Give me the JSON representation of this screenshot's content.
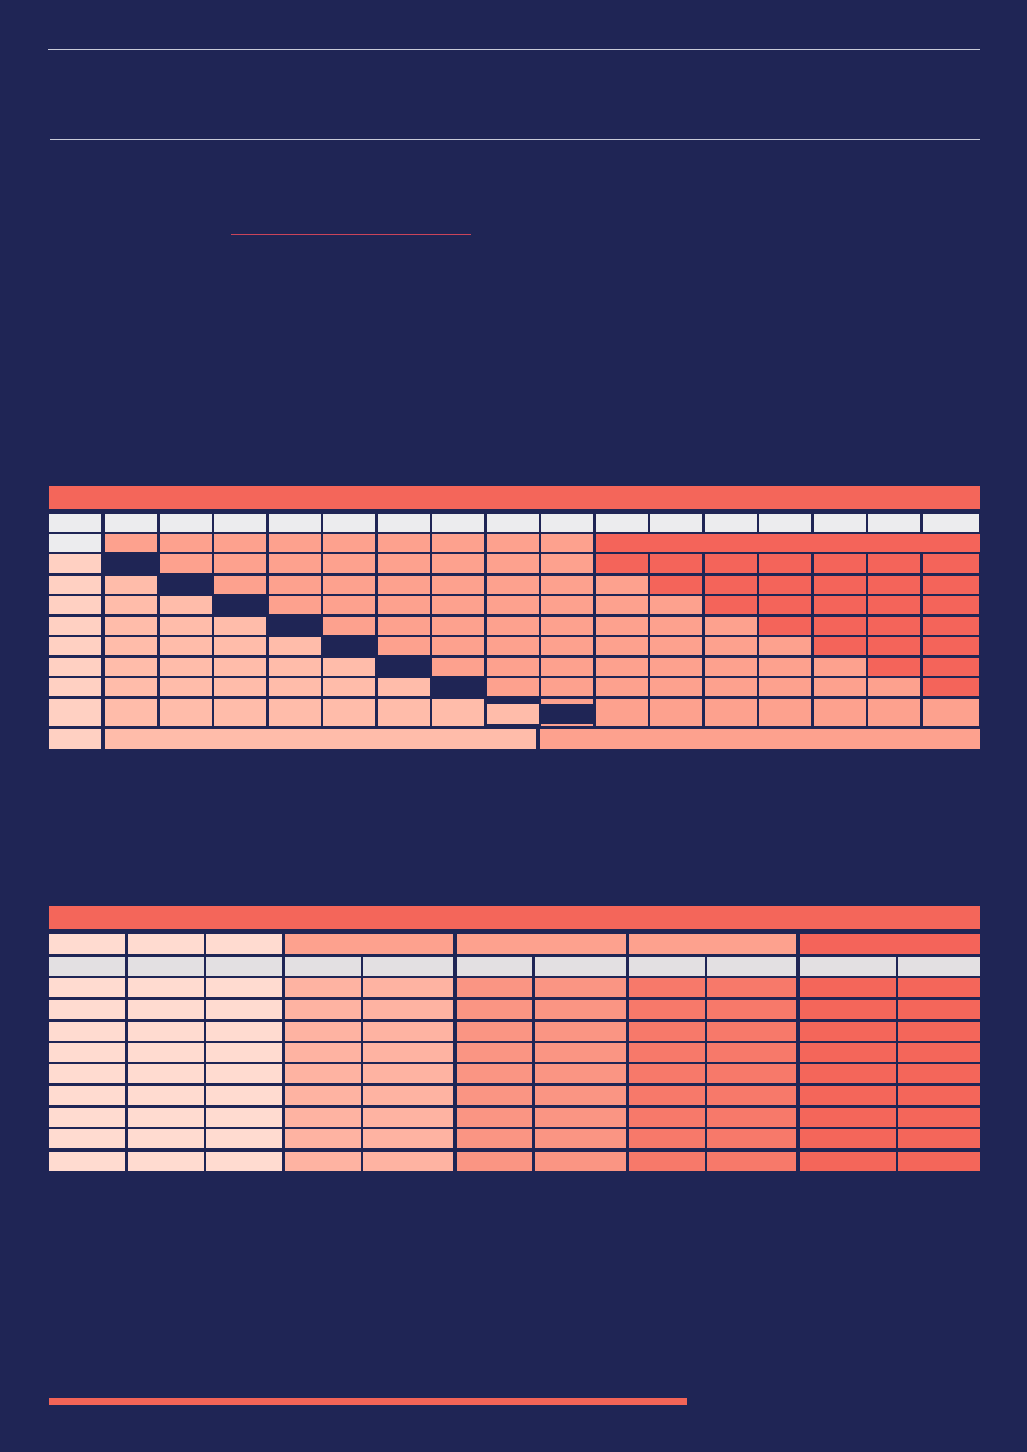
{
  "colors": {
    "background": "#1f2555",
    "rule": "#c9cbd8",
    "accent": "#f26457",
    "accent_underline": "#c9445a",
    "band_red": "#f4665a",
    "header_light": "#ececee",
    "header_grey": "#e3e0e2",
    "cell_pale": "#ffbcaa",
    "cell_peach": "#fda18e",
    "cell_red": "#f4645a",
    "row_label_pale": "#ffd0c2",
    "lower_pale": "#ffdbd0",
    "lower_peach1": "#feb3a2",
    "lower_peach2": "#fa9583",
    "lower_red1": "#f7796a",
    "lower_red2": "#f4665a"
  },
  "upper_table": {
    "title": "",
    "columns": 16,
    "body_rows": 9,
    "pale_lower_triangle": true,
    "highlighted_upper_triangle": true
  },
  "lower_table": {
    "title": "",
    "column_groups": 4,
    "body_rows": 9
  }
}
